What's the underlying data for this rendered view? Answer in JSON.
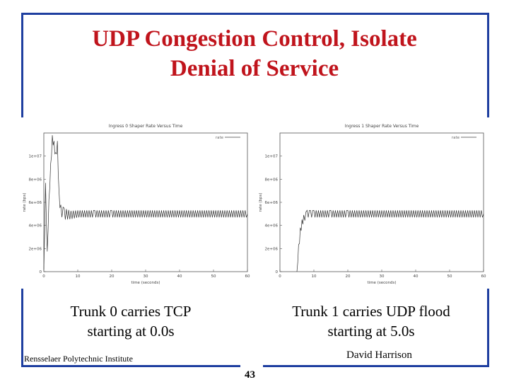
{
  "slide": {
    "title": "UDP Congestion Control, Isolate\nDenial of Service",
    "caption_left": "Trunk 0 carries TCP\nstarting at 0.0s",
    "caption_right": "Trunk 1 carries UDP flood\nstarting at 5.0s",
    "footer_left": "Rensselaer Polytechnic Institute",
    "footer_right": "David Harrison",
    "page_number": "43",
    "colors": {
      "frame": "#1f3fa0",
      "title": "#c0141c"
    }
  },
  "chart_data": [
    {
      "type": "line",
      "title": "Ingress 0 Shaper Rate Versus Time",
      "xlabel": "time (seconds)",
      "ylabel": "rate (bps)",
      "xlim": [
        0,
        60
      ],
      "ylim": [
        0,
        12000000
      ],
      "x_ticks": [
        0,
        10,
        20,
        30,
        40,
        50,
        60
      ],
      "x_tick_labels": [
        "0",
        "10",
        "20",
        "30",
        "40",
        "50",
        "60"
      ],
      "y_ticks": [
        0,
        2000000,
        4000000,
        6000000,
        8000000,
        10000000
      ],
      "y_tick_labels": [
        "0",
        "2e+06",
        "4e+06",
        "6e+06",
        "8e+06",
        "1e+07"
      ],
      "legend": "rate",
      "series": [
        {
          "x": [
            0,
            0.5,
            1,
            1.5,
            2,
            2.5,
            3,
            3.5,
            4,
            4.5,
            5,
            6,
            8,
            10,
            15,
            20,
            30,
            40,
            50,
            60
          ],
          "y": [
            0,
            7500000,
            1500000,
            6000000,
            9000000,
            11500000,
            11000000,
            10000000,
            11000000,
            6500000,
            5300000,
            5000000,
            4900000,
            5000000,
            5000000,
            5000000,
            5000000,
            5000000,
            5000000,
            5000000
          ],
          "oscillation": [
            3,
            3,
            4,
            4,
            5,
            5,
            5,
            5,
            5,
            5,
            8,
            8,
            6,
            5,
            5,
            5,
            5,
            5,
            5,
            5
          ]
        }
      ]
    },
    {
      "type": "line",
      "title": "Ingress 1 Shaper Rate Versus Time",
      "xlabel": "time (seconds)",
      "ylabel": "rate (bps)",
      "xlim": [
        0,
        60
      ],
      "ylim": [
        0,
        12000000
      ],
      "x_ticks": [
        0,
        10,
        20,
        30,
        40,
        50,
        60
      ],
      "x_tick_labels": [
        "0",
        "10",
        "20",
        "30",
        "40",
        "50",
        "60"
      ],
      "y_ticks": [
        0,
        2000000,
        4000000,
        6000000,
        8000000,
        10000000
      ],
      "y_tick_labels": [
        "0",
        "2e+06",
        "4e+06",
        "6e+06",
        "8e+06",
        "1e+07"
      ],
      "legend": "rate",
      "series": [
        {
          "x": [
            5,
            5.5,
            6,
            6.5,
            7,
            8,
            9,
            10,
            15,
            20,
            30,
            40,
            50,
            60
          ],
          "y": [
            0,
            2000000,
            3500000,
            4200000,
            4600000,
            5000000,
            5000000,
            5000000,
            5000000,
            5000000,
            5000000,
            5000000,
            5000000,
            5000000
          ],
          "oscillation": [
            0,
            6,
            5,
            5,
            5,
            5,
            5,
            5,
            5,
            5,
            5,
            5,
            5,
            5
          ]
        }
      ]
    }
  ]
}
